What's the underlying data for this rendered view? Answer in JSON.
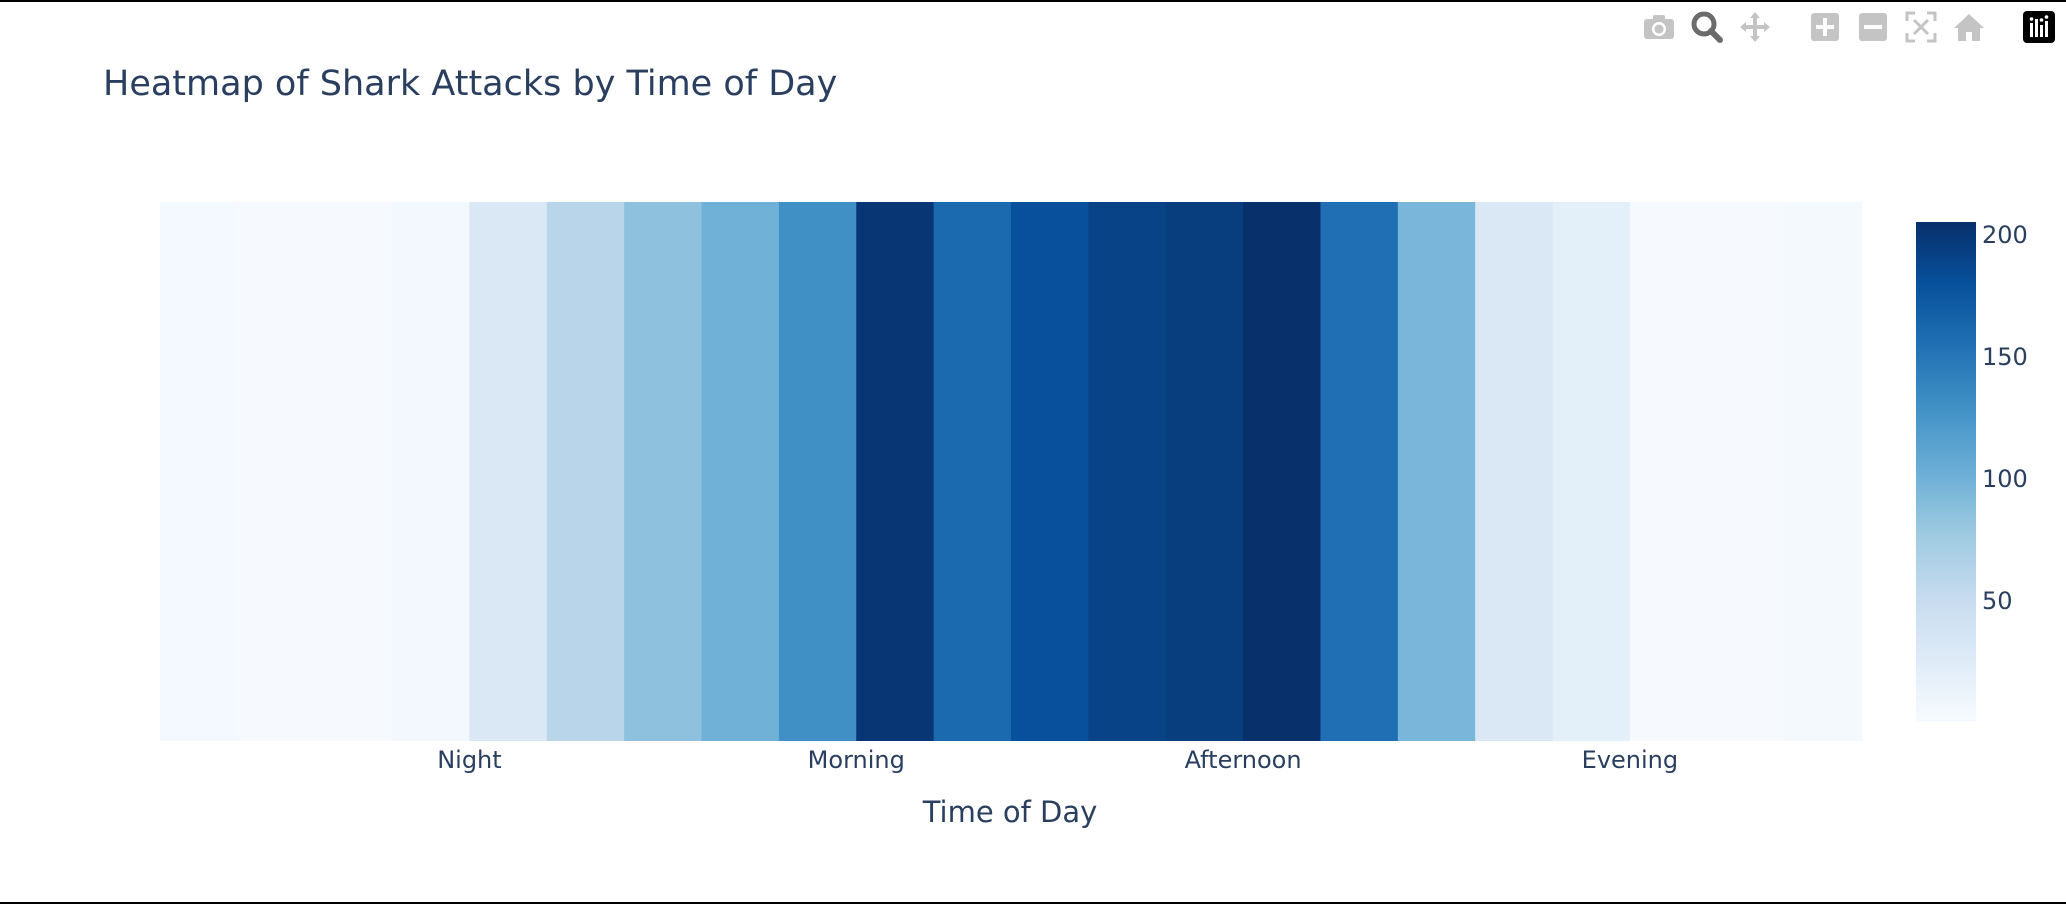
{
  "modebar": {
    "buttons": [
      {
        "name": "camera-icon",
        "label": "Download plot as a png"
      },
      {
        "name": "zoom-icon",
        "label": "Zoom"
      },
      {
        "name": "pan-icon",
        "label": "Pan"
      },
      {
        "name": "zoom-in-icon",
        "label": "Zoom in"
      },
      {
        "name": "zoom-out-icon",
        "label": "Zoom out"
      },
      {
        "name": "autoscale-icon",
        "label": "Autoscale"
      },
      {
        "name": "home-icon",
        "label": "Reset axes"
      },
      {
        "name": "plotly-logo-icon",
        "label": "Produced with Plotly"
      }
    ]
  },
  "chart_data": {
    "type": "heatmap",
    "title": "Heatmap of Shark Attacks by Time of Day",
    "xlabel": "Time of Day",
    "ylabel": "",
    "x": [
      0,
      1,
      2,
      3,
      4,
      5,
      6,
      7,
      8,
      9,
      10,
      11,
      12,
      13,
      14,
      15,
      16,
      17,
      18,
      19,
      20,
      21
    ],
    "values": [
      4,
      1,
      1,
      5,
      30,
      60,
      85,
      100,
      130,
      200,
      160,
      180,
      190,
      195,
      205,
      155,
      95,
      30,
      20,
      1,
      1,
      3
    ],
    "x_tick_labels": [
      {
        "label": "Night",
        "x": 3.5
      },
      {
        "label": "Morning",
        "x": 8.5
      },
      {
        "label": "Afternoon",
        "x": 13.5
      },
      {
        "label": "Evening",
        "x": 18.5
      }
    ],
    "colorscale": "Blues",
    "colorbar": {
      "min": 0,
      "max": 205,
      "ticks": [
        50,
        100,
        150,
        200
      ]
    },
    "grid": false,
    "legend": "colorbar-right",
    "colors": {
      "scale": [
        "#f7fbff",
        "#deebf7",
        "#c6dbef",
        "#9ecae1",
        "#6baed6",
        "#4292c6",
        "#2171b5",
        "#08519c",
        "#08306b"
      ],
      "text": "#2a3f5f",
      "modebar_icon": "#c4c4c4",
      "modebar_active": "#6b6b6b"
    }
  }
}
